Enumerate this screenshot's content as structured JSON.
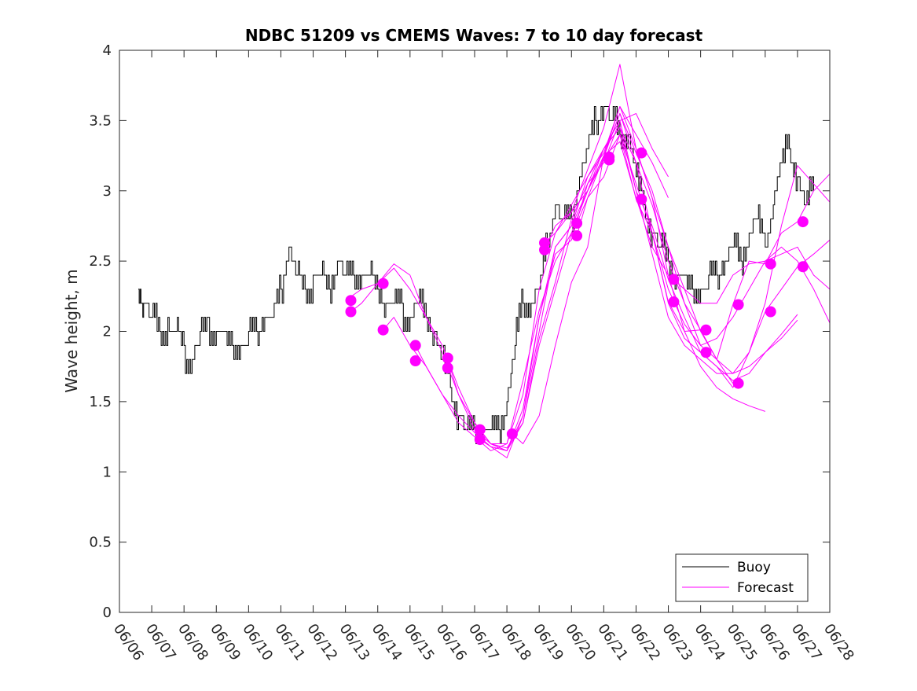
{
  "chart_data": {
    "type": "line",
    "title": "NDBC 51209 vs CMEMS Waves: 7 to 10 day forecast",
    "xlabel": "",
    "ylabel": "Wave height, m",
    "xlim": [
      "06/06",
      "06/28"
    ],
    "ylim": [
      0,
      4
    ],
    "x_ticks": [
      "06/06",
      "06/07",
      "06/08",
      "06/09",
      "06/10",
      "06/11",
      "06/12",
      "06/13",
      "06/14",
      "06/15",
      "06/16",
      "06/17",
      "06/18",
      "06/19",
      "06/20",
      "06/21",
      "06/22",
      "06/23",
      "06/24",
      "06/25",
      "06/26",
      "06/27",
      "06/28"
    ],
    "y_ticks": [
      "0",
      "0.5",
      "1",
      "1.5",
      "2",
      "2.5",
      "3",
      "3.5",
      "4"
    ],
    "grid": false,
    "legend": {
      "position": "bottom-right"
    },
    "colors": {
      "buoy": "#000000",
      "forecast": "#ff00ff"
    },
    "series": [
      {
        "name": "Buoy",
        "color": "#000000",
        "x": [
          "06/06 14:00",
          "06/06 18:00",
          "06/07 00:00",
          "06/07 06:00",
          "06/07 12:00",
          "06/07 18:00",
          "06/08 00:00",
          "06/08 06:00",
          "06/08 12:00",
          "06/08 18:00",
          "06/09 00:00",
          "06/09 06:00",
          "06/09 12:00",
          "06/09 18:00",
          "06/10 00:00",
          "06/10 06:00",
          "06/10 12:00",
          "06/10 18:00",
          "06/11 00:00",
          "06/11 06:00",
          "06/11 12:00",
          "06/11 18:00",
          "06/12 00:00",
          "06/12 06:00",
          "06/12 12:00",
          "06/12 18:00",
          "06/13 00:00",
          "06/13 06:00",
          "06/13 12:00",
          "06/13 18:00",
          "06/14 00:00",
          "06/14 06:00",
          "06/14 12:00",
          "06/14 18:00",
          "06/15 00:00",
          "06/15 06:00",
          "06/15 12:00",
          "06/15 18:00",
          "06/16 00:00",
          "06/16 06:00",
          "06/16 12:00",
          "06/16 18:00",
          "06/17 00:00",
          "06/17 06:00",
          "06/17 12:00",
          "06/17 18:00",
          "06/18 00:00",
          "06/18 06:00",
          "06/18 12:00",
          "06/18 18:00",
          "06/19 00:00",
          "06/19 06:00",
          "06/19 12:00",
          "06/19 18:00",
          "06/20 00:00",
          "06/20 06:00",
          "06/20 12:00",
          "06/20 18:00",
          "06/21 00:00",
          "06/21 06:00",
          "06/21 12:00",
          "06/21 18:00",
          "06/22 00:00",
          "06/22 06:00",
          "06/22 12:00",
          "06/22 18:00",
          "06/23 00:00",
          "06/23 06:00",
          "06/23 12:00",
          "06/23 18:00",
          "06/24 00:00",
          "06/24 06:00",
          "06/24 12:00",
          "06/24 18:00",
          "06/25 00:00",
          "06/25 06:00",
          "06/25 12:00",
          "06/25 18:00",
          "06/26 00:00",
          "06/26 06:00",
          "06/26 12:00",
          "06/26 18:00",
          "06/27 00:00",
          "06/27 06:00",
          "06/27 12:00"
        ],
        "values": [
          2.3,
          2.2,
          2.1,
          2.0,
          2.05,
          2.0,
          1.85,
          1.8,
          1.95,
          2.05,
          2.0,
          1.95,
          1.85,
          1.9,
          1.95,
          2.0,
          2.1,
          2.1,
          2.3,
          2.6,
          2.4,
          2.3,
          2.35,
          2.4,
          2.3,
          2.5,
          2.4,
          2.35,
          2.35,
          2.4,
          2.3,
          2.2,
          2.15,
          2.15,
          2.1,
          2.2,
          2.1,
          2.0,
          1.8,
          1.6,
          1.4,
          1.3,
          1.25,
          1.25,
          1.25,
          1.3,
          1.5,
          1.9,
          2.2,
          2.2,
          2.3,
          2.6,
          2.9,
          2.8,
          2.8,
          3.1,
          3.3,
          3.5,
          3.6,
          3.5,
          3.4,
          3.4,
          3.1,
          2.9,
          2.7,
          2.6,
          2.5,
          2.4,
          2.35,
          2.3,
          2.3,
          2.35,
          2.4,
          2.5,
          2.6,
          2.5,
          2.7,
          2.8,
          2.6,
          2.9,
          3.2,
          3.3,
          3.1,
          2.9,
          3.0
        ]
      },
      {
        "name": "Forecast",
        "color": "#ff00ff",
        "x": [
          "06/13 00:00",
          "06/13 12:00",
          "06/14 00:00",
          "06/14 12:00",
          "06/15 00:00",
          "06/15 12:00",
          "06/16 00:00",
          "06/16 12:00",
          "06/17 00:00",
          "06/17 12:00",
          "06/18 00:00",
          "06/18 12:00",
          "06/19 00:00",
          "06/19 12:00",
          "06/20 00:00",
          "06/20 12:00",
          "06/21 00:00",
          "06/21 12:00",
          "06/22 00:00",
          "06/22 12:00",
          "06/23 00:00"
        ],
        "values": [
          2.22,
          2.3,
          2.34,
          2.45,
          2.3,
          2.1,
          1.9,
          1.6,
          1.35,
          1.2,
          1.15,
          1.4,
          2.0,
          2.6,
          2.75,
          3.0,
          3.25,
          3.6,
          3.4,
          3.2,
          2.95
        ]
      },
      {
        "name": "",
        "color": "#ff00ff",
        "x": [
          "06/13 04:00",
          "06/13 12:00",
          "06/14 00:00",
          "06/14 12:00",
          "06/15 00:00",
          "06/15 12:00",
          "06/16 00:00",
          "06/16 12:00",
          "06/17 00:00",
          "06/17 12:00",
          "06/18 00:00",
          "06/18 12:00",
          "06/19 00:00",
          "06/19 12:00",
          "06/20 00:00",
          "06/20 12:00",
          "06/21 00:00",
          "06/21 12:00",
          "06/22 00:00",
          "06/22 12:00",
          "06/23 00:00"
        ],
        "values": [
          2.14,
          2.2,
          2.34,
          2.48,
          2.4,
          2.1,
          1.85,
          1.55,
          1.35,
          1.2,
          1.15,
          1.45,
          2.1,
          2.55,
          2.65,
          3.05,
          3.2,
          3.5,
          3.55,
          3.3,
          3.1
        ]
      },
      {
        "name": "",
        "color": "#ff00ff",
        "x": [
          "06/14 04:00",
          "06/14 12:00",
          "06/15 00:00",
          "06/15 12:00",
          "06/16 00:00",
          "06/16 12:00",
          "06/17 00:00",
          "06/17 12:00",
          "06/18 00:00",
          "06/18 12:00",
          "06/19 00:00",
          "06/19 12:00",
          "06/20 00:00",
          "06/20 12:00",
          "06/21 00:00",
          "06/21 12:00",
          "06/22 00:00",
          "06/22 12:00",
          "06/23 00:00",
          "06/23 12:00",
          "06/24 00:00"
        ],
        "values": [
          2.01,
          2.1,
          1.9,
          1.75,
          1.55,
          1.35,
          1.25,
          1.15,
          1.2,
          1.65,
          2.15,
          2.5,
          2.7,
          3.0,
          3.25,
          3.55,
          3.2,
          2.9,
          2.5,
          2.2,
          2.01
        ]
      },
      {
        "name": "",
        "color": "#ff00ff",
        "x": [
          "06/15 04:00",
          "06/15 12:00",
          "06/16 00:00",
          "06/16 12:00",
          "06/17 00:00",
          "06/17 12:00",
          "06/18 00:00",
          "06/18 12:00",
          "06/19 00:00",
          "06/19 12:00",
          "06/20 00:00",
          "06/20 12:00",
          "06/21 00:00",
          "06/21 12:00",
          "06/22 00:00",
          "06/22 12:00",
          "06/23 00:00",
          "06/23 12:00",
          "06/24 00:00",
          "06/24 12:00",
          "06/25 00:00"
        ],
        "values": [
          1.9,
          1.75,
          1.55,
          1.4,
          1.28,
          1.18,
          1.1,
          1.4,
          2.1,
          2.6,
          2.75,
          3.1,
          3.27,
          3.6,
          3.3,
          2.95,
          2.6,
          2.2,
          1.9,
          1.8,
          1.63
        ]
      },
      {
        "name": "",
        "color": "#ff00ff",
        "x": [
          "06/16 04:00",
          "06/16 12:00",
          "06/17 00:00",
          "06/17 12:00",
          "06/18 00:00",
          "06/18 12:00",
          "06/19 00:00",
          "06/19 12:00",
          "06/20 00:00",
          "06/20 12:00",
          "06/21 00:00",
          "06/21 12:00",
          "06/22 00:00",
          "06/22 12:00",
          "06/23 00:00",
          "06/23 12:00",
          "06/24 00:00",
          "06/24 12:00",
          "06/25 00:00",
          "06/25 12:00",
          "06/26 00:00"
        ],
        "values": [
          1.8,
          1.55,
          1.3,
          1.2,
          1.2,
          1.55,
          2.3,
          2.7,
          2.85,
          3.15,
          3.45,
          3.9,
          3.3,
          2.95,
          2.4,
          2.0,
          1.75,
          1.6,
          1.52,
          1.47,
          1.43
        ]
      },
      {
        "name": "",
        "color": "#ff00ff",
        "x": [
          "06/17 04:00",
          "06/17 12:00",
          "06/18 00:00",
          "06/18 12:00",
          "06/19 00:00",
          "06/19 12:00",
          "06/20 00:00",
          "06/20 12:00",
          "06/21 00:00",
          "06/21 12:00",
          "06/22 00:00",
          "06/22 12:00",
          "06/23 00:00",
          "06/23 12:00",
          "06/24 00:00",
          "06/24 12:00",
          "06/25 00:00",
          "06/25 12:00",
          "06/26 00:00",
          "06/26 12:00",
          "06/27 00:00"
        ],
        "values": [
          1.3,
          1.2,
          1.17,
          1.35,
          1.9,
          2.3,
          2.7,
          3.0,
          3.3,
          3.45,
          3.2,
          2.7,
          2.2,
          1.95,
          1.85,
          1.75,
          1.65,
          1.7,
          1.85,
          1.98,
          2.12
        ]
      },
      {
        "name": "",
        "color": "#ff00ff",
        "x": [
          "06/17 04:00",
          "06/17 12:00",
          "06/18 00:00",
          "06/18 12:00",
          "06/19 00:00",
          "06/19 12:00",
          "06/20 00:00",
          "06/20 12:00",
          "06/21 00:00",
          "06/21 12:00",
          "06/22 00:00",
          "06/22 12:00",
          "06/23 00:00",
          "06/23 12:00",
          "06/24 00:00",
          "06/24 12:00",
          "06/25 00:00",
          "06/25 12:00",
          "06/26 00:00",
          "06/26 12:00",
          "06/27 00:00"
        ],
        "values": [
          1.23,
          1.18,
          1.15,
          1.35,
          1.95,
          2.35,
          2.8,
          3.05,
          3.3,
          3.5,
          3.0,
          2.55,
          2.1,
          1.9,
          1.8,
          1.7,
          1.7,
          1.75,
          1.85,
          1.95,
          2.08
        ]
      },
      {
        "name": "",
        "color": "#ff00ff",
        "x": [
          "06/18 04:00",
          "06/18 12:00",
          "06/19 00:00",
          "06/19 12:00",
          "06/20 00:00",
          "06/20 12:00",
          "06/21 00:00",
          "06/21 12:00",
          "06/22 00:00",
          "06/22 12:00",
          "06/23 00:00",
          "06/23 12:00",
          "06/24 00:00",
          "06/24 12:00",
          "06/25 00:00",
          "06/25 12:00",
          "06/26 00:00",
          "06/26 12:00",
          "06/27 00:00",
          "06/27 12:00",
          "06/28 00:00"
        ],
        "values": [
          1.27,
          1.2,
          1.4,
          1.9,
          2.35,
          2.6,
          3.25,
          3.35,
          2.95,
          2.6,
          2.4,
          2.3,
          2.2,
          2.2,
          2.4,
          2.48,
          2.5,
          2.55,
          2.6,
          2.4,
          2.3
        ]
      },
      {
        "name": "",
        "color": "#ff00ff",
        "x": [
          "06/19 04:00",
          "06/19 12:00",
          "06/20 00:00",
          "06/20 12:00",
          "06/21 00:00",
          "06/21 12:00",
          "06/22 00:00",
          "06/22 12:00",
          "06/23 00:00",
          "06/23 12:00",
          "06/24 00:00",
          "06/24 12:00",
          "06/25 00:00",
          "06/25 12:00",
          "06/26 00:00",
          "06/26 12:00",
          "06/27 00:00",
          "06/27 12:00",
          "06/28 00:00"
        ],
        "values": [
          2.63,
          2.7,
          2.9,
          3.1,
          3.3,
          3.45,
          3.0,
          2.75,
          2.37,
          2.1,
          1.85,
          1.75,
          1.6,
          1.85,
          2.14,
          2.3,
          2.46,
          2.55,
          2.65
        ]
      },
      {
        "name": "",
        "color": "#ff00ff",
        "x": [
          "06/19 04:00",
          "06/19 12:00",
          "06/20 00:00",
          "06/20 12:00",
          "06/21 00:00",
          "06/21 12:00",
          "06/22 00:00",
          "06/22 12:00",
          "06/23 00:00",
          "06/23 12:00",
          "06/24 00:00",
          "06/24 12:00",
          "06/25 00:00",
          "06/25 12:00",
          "06/26 00:00",
          "06/26 12:00",
          "06/27 00:00",
          "06/27 12:00",
          "06/28 00:00"
        ],
        "values": [
          2.58,
          2.75,
          2.85,
          3.0,
          3.22,
          3.4,
          2.94,
          2.7,
          2.21,
          2.0,
          2.01,
          1.8,
          2.19,
          2.5,
          2.48,
          2.7,
          2.78,
          3.0,
          3.12
        ]
      },
      {
        "name": "",
        "color": "#ff00ff",
        "x": [
          "06/20 04:00",
          "06/20 12:00",
          "06/21 00:00",
          "06/21 12:00",
          "06/22 00:00",
          "06/22 12:00",
          "06/23 00:00",
          "06/23 12:00",
          "06/24 00:00",
          "06/24 12:00",
          "06/25 00:00",
          "06/25 12:00",
          "06/26 00:00",
          "06/26 12:00",
          "06/27 00:00",
          "06/27 12:00",
          "06/28 00:00"
        ],
        "values": [
          2.77,
          2.95,
          3.24,
          3.55,
          3.27,
          3.0,
          2.6,
          2.3,
          2.0,
          1.8,
          1.7,
          1.85,
          2.2,
          2.75,
          3.18,
          3.05,
          2.92
        ]
      },
      {
        "name": "",
        "color": "#ff00ff",
        "x": [
          "06/20 04:00",
          "06/20 12:00",
          "06/21 00:00",
          "06/21 12:00",
          "06/22 00:00",
          "06/22 12:00",
          "06/23 00:00",
          "06/23 12:00",
          "06/24 00:00",
          "06/24 12:00",
          "06/25 00:00",
          "06/25 12:00",
          "06/26 00:00",
          "06/26 12:00",
          "06/27 00:00",
          "06/27 12:00",
          "06/28 00:00"
        ],
        "values": [
          2.68,
          2.95,
          3.1,
          3.4,
          3.05,
          2.7,
          2.3,
          2.05,
          1.9,
          1.95,
          2.1,
          2.3,
          2.5,
          2.6,
          2.5,
          2.3,
          2.06
        ]
      }
    ],
    "markers": {
      "color": "#ff00ff",
      "x": [
        "06/13 04:00",
        "06/13 04:00",
        "06/14 04:00",
        "06/14 04:00",
        "06/15 04:00",
        "06/15 04:00",
        "06/16 04:00",
        "06/16 04:00",
        "06/17 04:00",
        "06/17 04:00",
        "06/18 04:00",
        "06/19 04:00",
        "06/19 04:00",
        "06/20 04:00",
        "06/20 04:00",
        "06/21 04:00",
        "06/21 04:00",
        "06/22 04:00",
        "06/22 04:00",
        "06/23 04:00",
        "06/23 04:00",
        "06/24 04:00",
        "06/24 04:00",
        "06/25 04:00",
        "06/25 04:00",
        "06/26 04:00",
        "06/26 04:00",
        "06/27 04:00",
        "06/27 04:00"
      ],
      "values": [
        2.22,
        2.14,
        2.34,
        2.01,
        1.9,
        1.79,
        1.81,
        1.74,
        1.3,
        1.23,
        1.27,
        2.63,
        2.58,
        2.77,
        2.68,
        3.24,
        3.22,
        3.27,
        2.94,
        2.37,
        2.21,
        2.01,
        1.85,
        2.19,
        1.63,
        2.48,
        2.14,
        2.78,
        2.46
      ]
    }
  }
}
